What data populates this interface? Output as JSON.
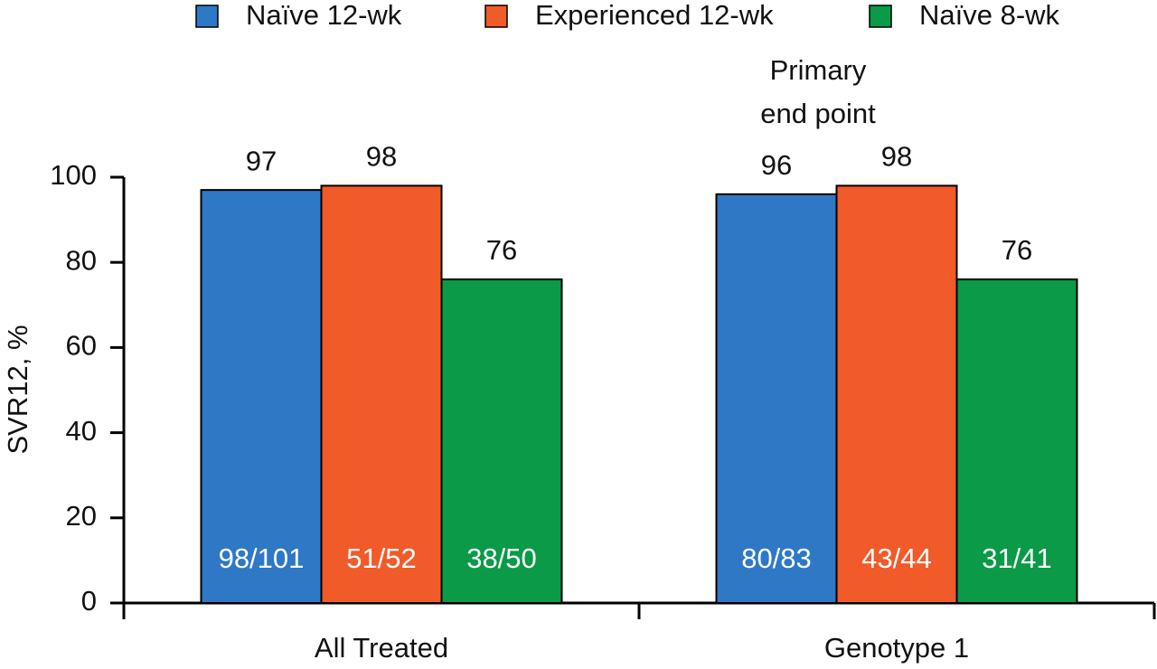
{
  "chart_data": {
    "type": "bar",
    "y_label": "SVR12, %",
    "categories": [
      "All Treated",
      "Genotype 1"
    ],
    "series": [
      {
        "name": "Naïve 12-wk",
        "color": "#2e78c6",
        "values": [
          97,
          96
        ],
        "counts": [
          "98/101",
          "80/83"
        ]
      },
      {
        "name": "Experienced 12-wk",
        "color": "#f15a29",
        "values": [
          98,
          98
        ],
        "counts": [
          "51/52",
          "43/44"
        ]
      },
      {
        "name": "Naïve 8-wk",
        "color": "#0a9a48",
        "values": [
          76,
          76
        ],
        "counts": [
          "38/50",
          "31/41"
        ]
      }
    ],
    "annotation": {
      "lines": [
        "Primary",
        "end point"
      ]
    },
    "ylim": [
      0,
      100
    ],
    "yticks": [
      0,
      20,
      40,
      60,
      80,
      100
    ],
    "grid": false
  }
}
